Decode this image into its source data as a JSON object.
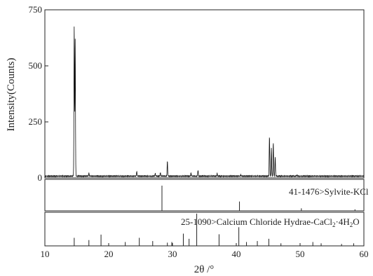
{
  "chart_data": {
    "type": "line",
    "title": "",
    "xlabel": "2θ /°",
    "ylabel": "Intensity(Counts)",
    "xlim": [
      10,
      60
    ],
    "ylim": [
      0,
      750
    ],
    "x_ticks": [
      10,
      20,
      30,
      40,
      50,
      60
    ],
    "y_ticks": [
      0,
      250,
      500,
      750
    ],
    "grid": false,
    "legend": "none",
    "series": [
      {
        "baseline": 8,
        "peaks": [
          {
            "x": 14.6,
            "y": 680
          },
          {
            "x": 14.75,
            "y": 620
          },
          {
            "x": 16.9,
            "y": 22
          },
          {
            "x": 24.4,
            "y": 30
          },
          {
            "x": 27.3,
            "y": 20
          },
          {
            "x": 28.1,
            "y": 25
          },
          {
            "x": 29.2,
            "y": 75
          },
          {
            "x": 32.9,
            "y": 22
          },
          {
            "x": 34.0,
            "y": 35
          },
          {
            "x": 37.0,
            "y": 20
          },
          {
            "x": 40.7,
            "y": 14
          },
          {
            "x": 45.2,
            "y": 190
          },
          {
            "x": 45.5,
            "y": 135
          },
          {
            "x": 45.8,
            "y": 160
          },
          {
            "x": 46.1,
            "y": 95
          },
          {
            "x": 49.5,
            "y": 14
          }
        ]
      }
    ],
    "reference_patterns": [
      {
        "label": "41-1476>Sylvite-KCl",
        "lines": [
          {
            "x": 28.35,
            "h": 1.0
          },
          {
            "x": 40.5,
            "h": 0.37
          },
          {
            "x": 50.2,
            "h": 0.1
          },
          {
            "x": 58.6,
            "h": 0.06
          }
        ]
      },
      {
        "label_prefix": "25-1090>Calcium Chloride Hydrae-CaCl",
        "label_sub1": "2",
        "label_mid": "·4H",
        "label_sub2": "2",
        "label_suffix": "O",
        "lines": [
          {
            "x": 14.6,
            "h": 0.25
          },
          {
            "x": 16.9,
            "h": 0.18
          },
          {
            "x": 18.8,
            "h": 0.35
          },
          {
            "x": 22.6,
            "h": 0.12
          },
          {
            "x": 24.8,
            "h": 0.25
          },
          {
            "x": 26.9,
            "h": 0.15
          },
          {
            "x": 29.2,
            "h": 0.1
          },
          {
            "x": 29.9,
            "h": 0.12
          },
          {
            "x": 31.7,
            "h": 0.38
          },
          {
            "x": 32.6,
            "h": 0.22
          },
          {
            "x": 33.8,
            "h": 1.0
          },
          {
            "x": 37.3,
            "h": 0.36
          },
          {
            "x": 40.4,
            "h": 0.58
          },
          {
            "x": 41.6,
            "h": 0.12
          },
          {
            "x": 43.3,
            "h": 0.15
          },
          {
            "x": 45.1,
            "h": 0.22
          },
          {
            "x": 47.0,
            "h": 0.08
          },
          {
            "x": 52.0,
            "h": 0.12
          },
          {
            "x": 53.3,
            "h": 0.08
          },
          {
            "x": 56.5,
            "h": 0.06
          },
          {
            "x": 58.4,
            "h": 0.08
          }
        ]
      }
    ]
  }
}
